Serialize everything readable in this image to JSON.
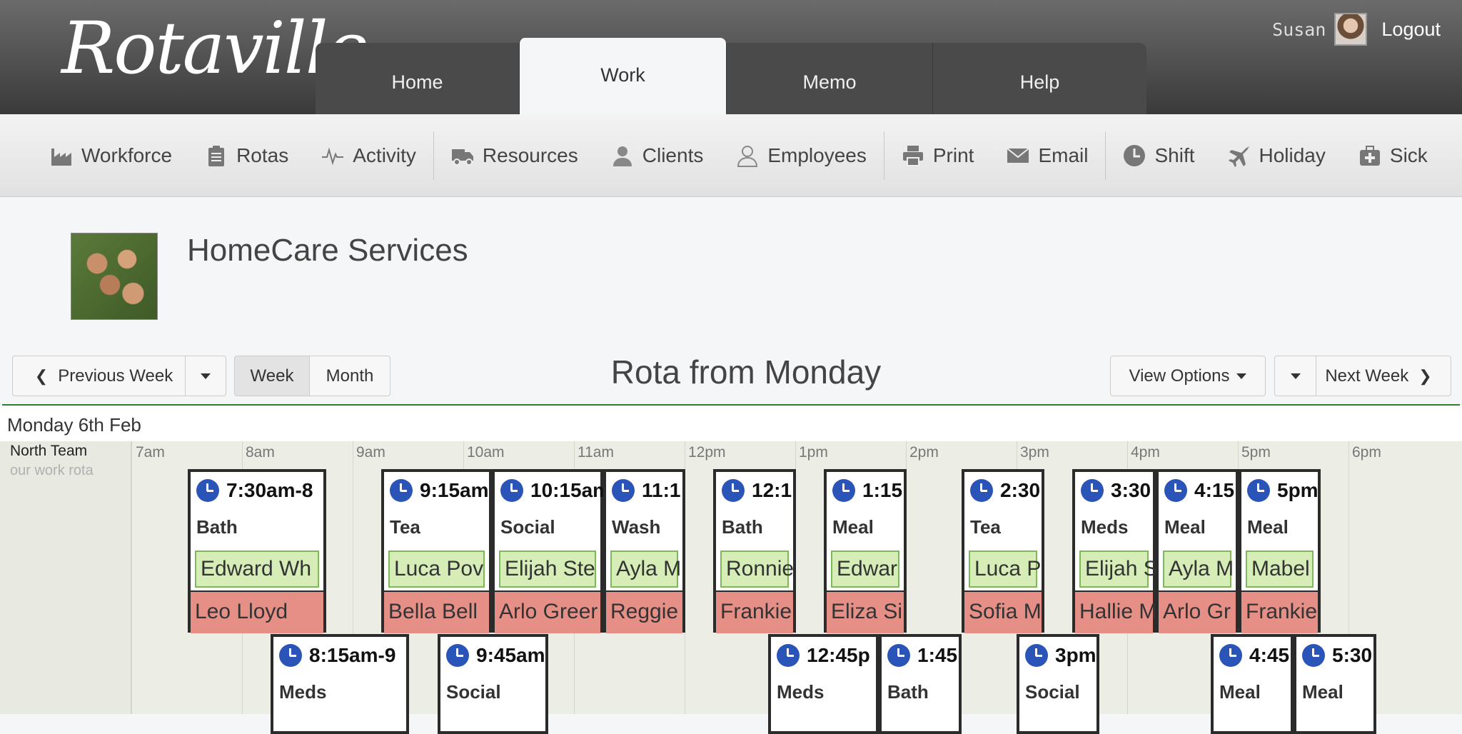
{
  "header": {
    "logo": "Rotaville",
    "nav": [
      {
        "label": "Home",
        "active": false
      },
      {
        "label": "Work",
        "active": true
      },
      {
        "label": "Memo",
        "active": false
      },
      {
        "label": "Help",
        "active": false
      }
    ],
    "user_name": "Susan",
    "logout_label": "Logout"
  },
  "toolbar": [
    {
      "label": "Workforce",
      "icon": "factory-icon"
    },
    {
      "label": "Rotas",
      "icon": "clipboard-icon"
    },
    {
      "label": "Activity",
      "icon": "pulse-icon"
    },
    {
      "label": "Resources",
      "icon": "truck-icon"
    },
    {
      "label": "Clients",
      "icon": "client-icon"
    },
    {
      "label": "Employees",
      "icon": "person-icon"
    },
    {
      "label": "Print",
      "icon": "printer-icon"
    },
    {
      "label": "Email",
      "icon": "envelope-icon"
    },
    {
      "label": "Shift",
      "icon": "clock-icon"
    },
    {
      "label": "Holiday",
      "icon": "plane-icon"
    },
    {
      "label": "Sick",
      "icon": "medkit-icon"
    }
  ],
  "org": {
    "name": "HomeCare Services"
  },
  "controls": {
    "previous_week": "Previous Week",
    "week": "Week",
    "month": "Month",
    "title": "Rota from Monday",
    "view_options": "View Options",
    "next_week": "Next Week"
  },
  "day": {
    "label": "Monday 6th Feb",
    "team_name": "North Team",
    "team_sub": "our work rota",
    "hours": [
      "7am",
      "8am",
      "9am",
      "10am",
      "11am",
      "12pm",
      "1pm",
      "2pm",
      "3pm",
      "4pm",
      "5pm",
      "6pm"
    ]
  },
  "shifts_row1": [
    {
      "time": "7:30am-8",
      "type": "Bath",
      "client": "Edward Wh",
      "employee": "Leo Lloyd"
    },
    {
      "time": "9:15am",
      "type": "Tea",
      "client": "Luca Pov",
      "employee": "Bella Bell"
    },
    {
      "time": "10:15am",
      "type": "Social",
      "client": "Elijah Ste",
      "employee": "Arlo Greer"
    },
    {
      "time": "11:1",
      "type": "Wash",
      "client": "Ayla M",
      "employee": "Reggie"
    },
    {
      "time": "12:1",
      "type": "Bath",
      "client": "Ronnie",
      "employee": "Frankie"
    },
    {
      "time": "1:15",
      "type": "Meal",
      "client": "Edwar",
      "employee": "Eliza Si"
    },
    {
      "time": "2:30",
      "type": "Tea",
      "client": "Luca P",
      "employee": "Sofia M"
    },
    {
      "time": "3:30",
      "type": "Meds",
      "client": "Elijah S",
      "employee": "Hallie M"
    },
    {
      "time": "4:15",
      "type": "Meal",
      "client": "Ayla M",
      "employee": "Arlo Gr"
    },
    {
      "time": "5pm",
      "type": "Meal",
      "client": "Mabel",
      "employee": "Frankie"
    }
  ],
  "shifts_row2": [
    {
      "time": "8:15am-9",
      "type": "Meds"
    },
    {
      "time": "9:45am",
      "type": "Social"
    },
    {
      "time": "12:45p",
      "type": "Meds"
    },
    {
      "time": "1:45",
      "type": "Bath"
    },
    {
      "time": "3pm",
      "type": "Social"
    },
    {
      "time": "4:45",
      "type": "Meal"
    },
    {
      "time": "5:30",
      "type": "Meal"
    }
  ]
}
